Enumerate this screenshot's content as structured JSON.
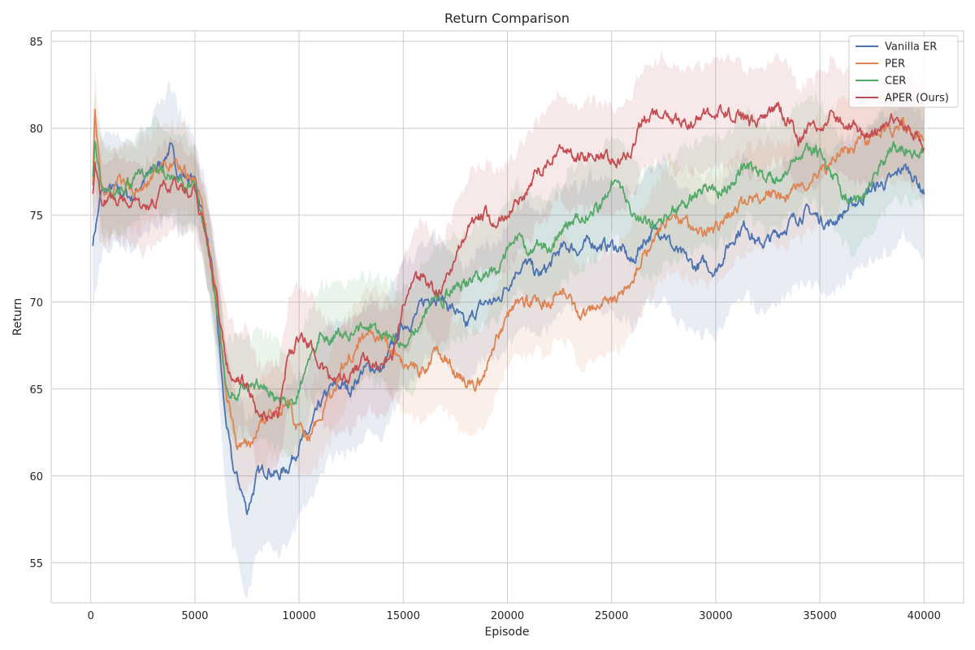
{
  "chart_data": {
    "type": "line",
    "title": "Return Comparison",
    "xlabel": "Episode",
    "ylabel": "Return",
    "xlim": [
      -1900,
      41900
    ],
    "ylim": [
      52.7,
      85.6
    ],
    "xticks": [
      0,
      5000,
      10000,
      15000,
      20000,
      25000,
      30000,
      35000,
      40000
    ],
    "xtick_labels": [
      "0",
      "5000",
      "10000",
      "15000",
      "20000",
      "25000",
      "30000",
      "35000",
      "40000"
    ],
    "yticks": [
      55,
      60,
      65,
      70,
      75,
      80,
      85
    ],
    "ytick_labels": [
      "55",
      "60",
      "65",
      "70",
      "75",
      "80",
      "85"
    ],
    "grid": true,
    "legend_position": "top-right",
    "series": [
      {
        "name": "Vanilla ER",
        "color": "#4c72b0",
        "x": [
          100,
          500,
          1000,
          1500,
          2000,
          2500,
          3000,
          3500,
          3800,
          4200,
          4600,
          5000,
          5500,
          6000,
          6400,
          6800,
          7200,
          7500,
          8000,
          8500,
          9000,
          9500,
          10000,
          10500,
          11000,
          11500,
          12000,
          12500,
          13000,
          13500,
          14000,
          14500,
          15000,
          15500,
          16000,
          16500,
          17000,
          17500,
          18000,
          18500,
          19000,
          19500,
          20000,
          20500,
          21000,
          21500,
          22000,
          22500,
          23000,
          23500,
          24000,
          24500,
          25000,
          25500,
          26000,
          26500,
          27000,
          27500,
          28000,
          28500,
          29000,
          29500,
          30000,
          30500,
          31000,
          31500,
          32000,
          32500,
          33000,
          33500,
          34000,
          34500,
          35000,
          35500,
          36000,
          36500,
          37000,
          37500,
          38000,
          38500,
          39000,
          39500,
          40000
        ],
        "y": [
          73.5,
          76.2,
          76.5,
          76.3,
          76.0,
          77.0,
          77.5,
          78.2,
          78.9,
          77.5,
          77.2,
          77.0,
          74.5,
          70.0,
          64.0,
          60.5,
          59.3,
          58.0,
          60.0,
          60.5,
          60.0,
          60.6,
          61.8,
          62.5,
          64.0,
          65.0,
          65.2,
          65.0,
          66.0,
          66.3,
          66.0,
          67.5,
          68.7,
          69.0,
          70.0,
          70.5,
          70.0,
          69.5,
          68.5,
          69.5,
          70.0,
          70.0,
          71.0,
          72.0,
          72.2,
          71.5,
          72.0,
          73.0,
          73.2,
          73.0,
          73.5,
          73.2,
          73.3,
          73.0,
          72.2,
          73.5,
          74.0,
          74.2,
          73.0,
          72.5,
          72.0,
          72.2,
          71.8,
          73.0,
          74.0,
          74.5,
          73.3,
          73.5,
          74.0,
          74.5,
          75.0,
          75.2,
          74.8,
          74.5,
          75.0,
          75.5,
          76.0,
          76.5,
          76.8,
          77.0,
          77.8,
          77.3,
          76.3
        ],
        "band": [
          4.0,
          3.5,
          3.2,
          3.0,
          3.0,
          3.0,
          3.2,
          3.5,
          3.8,
          3.5,
          3.0,
          2.5,
          2.5,
          3.0,
          4.0,
          4.5,
          5.0,
          5.0,
          4.5,
          4.5,
          4.5,
          4.5,
          4.0,
          4.0,
          4.0,
          4.0,
          4.0,
          3.8,
          3.8,
          3.8,
          3.8,
          3.8,
          3.8,
          3.5,
          3.5,
          3.5,
          3.3,
          3.3,
          3.3,
          3.3,
          3.3,
          3.3,
          3.5,
          3.5,
          3.5,
          3.5,
          3.5,
          3.5,
          3.5,
          3.5,
          3.8,
          3.8,
          3.8,
          3.8,
          3.8,
          3.8,
          4.0,
          4.0,
          4.0,
          4.0,
          4.0,
          4.0,
          4.0,
          4.0,
          4.0,
          4.0,
          4.0,
          4.0,
          4.0,
          4.0,
          4.0,
          4.0,
          4.0,
          4.0,
          4.0,
          4.0,
          4.0,
          4.0,
          4.0,
          4.0,
          4.0,
          4.0,
          4.0
        ]
      },
      {
        "name": "PER",
        "color": "#dd8452",
        "x": [
          100,
          200,
          500,
          1000,
          1500,
          2000,
          2500,
          3000,
          3500,
          4000,
          4500,
          5000,
          5500,
          6000,
          6500,
          7000,
          7500,
          8000,
          8500,
          9000,
          9500,
          10000,
          10500,
          11000,
          11500,
          12000,
          12500,
          13000,
          13500,
          14000,
          14500,
          15000,
          15500,
          16000,
          16500,
          17000,
          17500,
          18000,
          18500,
          19000,
          19500,
          20000,
          20500,
          21000,
          21500,
          22000,
          22500,
          23000,
          23500,
          24000,
          24500,
          25000,
          25500,
          26000,
          26500,
          27000,
          27500,
          28000,
          28500,
          29000,
          29500,
          30000,
          30500,
          31000,
          31500,
          32000,
          32500,
          33000,
          33500,
          34000,
          34500,
          35000,
          35500,
          36000,
          36500,
          37000,
          37500,
          38000,
          38500,
          39000,
          39500,
          40000
        ],
        "y": [
          77.0,
          81.0,
          76.5,
          76.5,
          76.8,
          76.5,
          76.8,
          77.3,
          77.5,
          77.8,
          77.5,
          77.0,
          74.5,
          70.5,
          65.0,
          61.8,
          61.8,
          62.5,
          63.5,
          63.5,
          64.0,
          62.5,
          62.5,
          63.5,
          64.5,
          66.0,
          67.0,
          67.8,
          68.2,
          68.0,
          67.2,
          66.5,
          66.3,
          66.0,
          67.0,
          66.8,
          66.0,
          65.5,
          65.2,
          66.0,
          68.0,
          69.2,
          70.0,
          70.0,
          70.2,
          70.0,
          71.0,
          70.5,
          69.0,
          69.5,
          69.8,
          70.0,
          70.5,
          71.5,
          72.5,
          73.5,
          74.5,
          75.0,
          74.5,
          74.2,
          74.0,
          74.3,
          74.8,
          75.3,
          75.8,
          76.0,
          76.3,
          76.0,
          76.2,
          76.5,
          77.0,
          77.5,
          78.0,
          78.5,
          78.7,
          79.2,
          79.5,
          80.0,
          79.8,
          80.2,
          79.7,
          79.5
        ],
        "band": [
          2.5,
          2.5,
          2.5,
          2.5,
          2.5,
          2.5,
          2.5,
          2.5,
          2.5,
          2.5,
          2.5,
          2.0,
          2.0,
          2.0,
          2.5,
          2.5,
          2.5,
          2.5,
          2.5,
          2.5,
          2.5,
          2.5,
          2.5,
          2.5,
          2.5,
          2.5,
          2.5,
          2.5,
          2.5,
          2.5,
          2.8,
          3.0,
          3.0,
          3.0,
          3.0,
          3.0,
          3.0,
          3.0,
          3.0,
          3.0,
          3.0,
          3.0,
          3.0,
          3.0,
          3.0,
          3.0,
          3.0,
          3.0,
          3.0,
          3.0,
          3.0,
          3.0,
          3.0,
          3.0,
          3.0,
          3.0,
          3.0,
          3.0,
          3.0,
          3.0,
          3.0,
          3.0,
          3.0,
          3.0,
          3.0,
          3.0,
          3.0,
          3.0,
          3.0,
          3.0,
          3.0,
          3.0,
          3.0,
          3.0,
          3.0,
          3.0,
          3.0,
          3.0,
          3.0,
          3.0,
          3.0,
          3.0
        ]
      },
      {
        "name": "CER",
        "color": "#55a868",
        "x": [
          100,
          200,
          500,
          1000,
          1500,
          2000,
          2500,
          3000,
          3500,
          4000,
          4500,
          5000,
          5500,
          6000,
          6500,
          7000,
          7500,
          8000,
          8500,
          9000,
          9500,
          10000,
          10500,
          11000,
          11500,
          12000,
          12500,
          13000,
          13500,
          14000,
          14500,
          15000,
          15500,
          16000,
          16500,
          17000,
          17500,
          18000,
          18500,
          19000,
          19500,
          20000,
          20500,
          21000,
          21500,
          22000,
          22500,
          23000,
          23500,
          24000,
          24500,
          25000,
          25500,
          26000,
          26500,
          27000,
          27500,
          28000,
          28500,
          29000,
          29500,
          30000,
          30500,
          31000,
          31500,
          32000,
          32500,
          33000,
          33500,
          34000,
          34500,
          35000,
          35500,
          36000,
          36500,
          37000,
          37500,
          38000,
          38500,
          39000,
          39500,
          40000
        ],
        "y": [
          77.5,
          79.5,
          76.5,
          76.3,
          76.5,
          76.8,
          77.5,
          78.0,
          77.5,
          77.3,
          76.8,
          76.5,
          74.0,
          70.0,
          65.0,
          64.8,
          65.0,
          65.2,
          65.0,
          64.5,
          64.0,
          65.0,
          66.5,
          68.0,
          68.0,
          68.2,
          68.0,
          68.5,
          68.5,
          68.3,
          68.0,
          67.8,
          68.0,
          69.2,
          70.0,
          70.3,
          70.8,
          71.0,
          71.5,
          71.8,
          72.0,
          73.0,
          73.8,
          73.0,
          73.2,
          73.0,
          73.8,
          74.5,
          75.0,
          75.3,
          75.5,
          76.8,
          76.5,
          75.0,
          74.5,
          74.5,
          75.0,
          75.5,
          75.8,
          76.0,
          76.5,
          76.2,
          76.5,
          77.3,
          78.0,
          77.5,
          77.0,
          77.2,
          77.8,
          78.3,
          79.0,
          78.5,
          77.5,
          76.5,
          75.8,
          76.0,
          77.0,
          78.0,
          78.8,
          79.0,
          78.7,
          78.5
        ],
        "band": [
          2.5,
          2.5,
          2.5,
          2.5,
          2.5,
          2.5,
          2.5,
          2.5,
          2.5,
          2.5,
          2.5,
          2.2,
          2.2,
          2.5,
          2.8,
          3.0,
          3.0,
          3.0,
          3.0,
          3.0,
          3.0,
          3.0,
          3.0,
          3.0,
          3.0,
          3.0,
          3.0,
          3.0,
          3.0,
          3.0,
          3.0,
          3.0,
          3.0,
          3.0,
          3.0,
          3.0,
          3.0,
          3.0,
          3.0,
          3.0,
          3.0,
          3.0,
          3.0,
          3.0,
          3.0,
          3.0,
          3.0,
          3.0,
          3.0,
          3.0,
          3.0,
          3.0,
          3.0,
          3.0,
          3.0,
          3.0,
          3.0,
          3.0,
          3.0,
          3.0,
          3.0,
          3.0,
          3.0,
          3.0,
          3.0,
          3.0,
          3.0,
          3.0,
          3.0,
          3.0,
          3.0,
          3.0,
          3.0,
          3.0,
          3.0,
          3.0,
          3.0,
          3.0,
          3.0,
          3.0,
          3.0,
          3.0
        ]
      },
      {
        "name": "APER (Ours)",
        "color": "#c44e52",
        "x": [
          100,
          200,
          500,
          1000,
          1500,
          2000,
          2500,
          3000,
          3500,
          4000,
          4500,
          5000,
          5500,
          6000,
          6500,
          7000,
          7500,
          8000,
          8500,
          9000,
          9500,
          10000,
          10500,
          11000,
          11500,
          12000,
          12500,
          13000,
          13500,
          14000,
          14500,
          15000,
          15500,
          16000,
          16500,
          17000,
          17500,
          18000,
          18500,
          19000,
          19500,
          20000,
          20500,
          21000,
          21500,
          22000,
          22500,
          23000,
          23500,
          24000,
          24500,
          25000,
          25500,
          26000,
          26500,
          27000,
          27500,
          28000,
          28500,
          29000,
          29500,
          30000,
          30500,
          31000,
          31500,
          32000,
          32500,
          33000,
          33500,
          34000,
          34500,
          35000,
          35500,
          36000,
          36500,
          37000,
          37500,
          38000,
          38500,
          39000,
          39500,
          40000
        ],
        "y": [
          76.5,
          78.0,
          75.5,
          76.0,
          76.0,
          75.8,
          75.3,
          75.8,
          76.5,
          76.8,
          76.5,
          76.3,
          74.0,
          70.5,
          66.5,
          65.5,
          65.5,
          63.5,
          63.3,
          63.5,
          67.0,
          68.0,
          67.5,
          66.5,
          65.5,
          65.3,
          65.8,
          66.5,
          66.8,
          66.5,
          67.0,
          69.8,
          71.0,
          71.8,
          70.5,
          70.8,
          72.5,
          74.0,
          74.8,
          75.0,
          74.5,
          75.0,
          75.8,
          76.5,
          77.5,
          78.0,
          79.0,
          78.5,
          78.2,
          78.5,
          78.5,
          78.2,
          78.2,
          79.0,
          80.5,
          80.8,
          81.2,
          80.5,
          80.5,
          80.3,
          80.8,
          80.8,
          81.0,
          80.8,
          80.3,
          80.2,
          80.8,
          81.2,
          80.5,
          79.2,
          79.8,
          80.0,
          80.8,
          80.5,
          80.2,
          79.8,
          79.5,
          80.0,
          80.5,
          80.3,
          79.8,
          79.0
        ],
        "band": [
          2.5,
          2.5,
          2.5,
          2.5,
          2.5,
          2.5,
          2.5,
          2.5,
          2.5,
          2.5,
          2.5,
          2.2,
          2.2,
          2.5,
          3.0,
          3.0,
          3.0,
          3.0,
          3.0,
          3.0,
          3.0,
          3.0,
          3.0,
          3.0,
          3.0,
          3.0,
          3.0,
          3.0,
          3.0,
          3.0,
          3.0,
          3.0,
          3.0,
          3.0,
          3.0,
          3.0,
          3.0,
          3.0,
          3.0,
          3.0,
          3.0,
          3.0,
          3.0,
          3.0,
          3.0,
          3.0,
          3.0,
          3.0,
          3.0,
          3.0,
          3.0,
          3.0,
          3.0,
          3.0,
          3.0,
          3.0,
          3.0,
          3.0,
          3.0,
          3.0,
          3.0,
          3.0,
          3.0,
          3.0,
          3.0,
          3.0,
          3.0,
          3.0,
          3.0,
          3.0,
          3.0,
          3.0,
          3.0,
          3.0,
          3.0,
          3.0,
          3.0,
          3.0,
          3.0,
          3.0,
          3.0,
          3.0
        ]
      }
    ]
  }
}
